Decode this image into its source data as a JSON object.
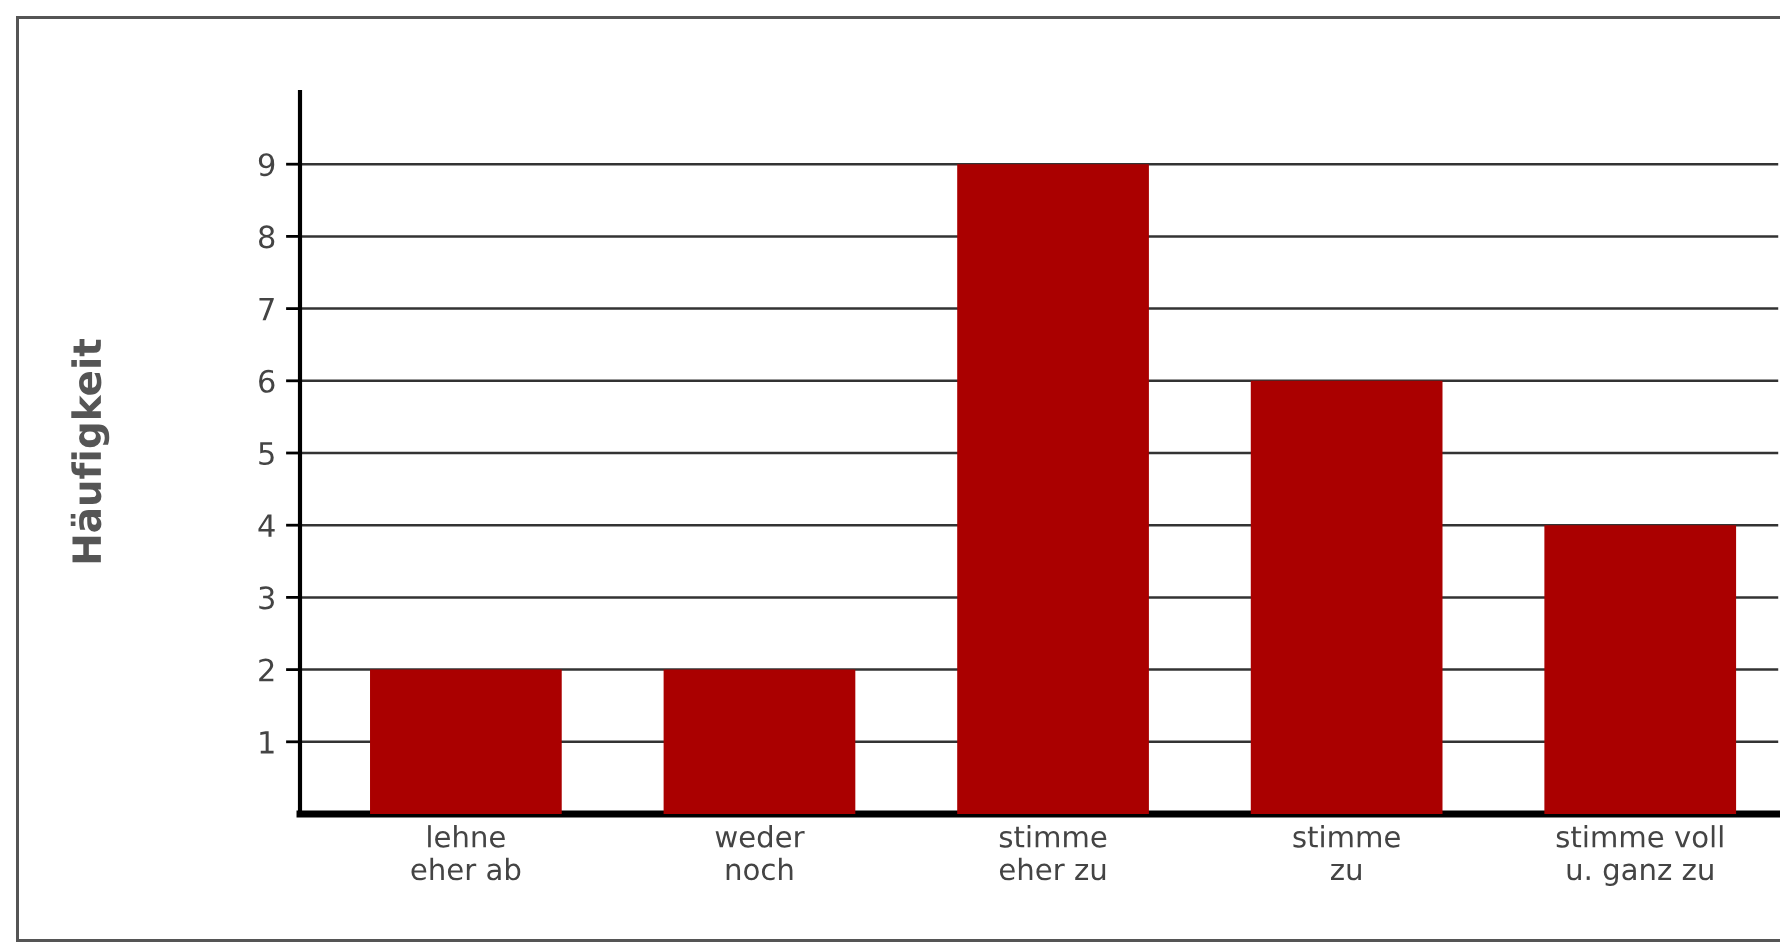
{
  "chart_data": {
    "type": "bar",
    "ylabel": "Häufigkeit",
    "categories": [
      "lehne\neher ab",
      "weder\nnoch",
      "stimme\neher zu",
      "stimme\nzu",
      "stimme voll\nu. ganz zu"
    ],
    "values": [
      2,
      2,
      9,
      6,
      4
    ],
    "color": "#aa0000",
    "ylim": [
      0,
      10
    ],
    "yticks": [
      1,
      2,
      3,
      4,
      5,
      6,
      7,
      8,
      9
    ],
    "grid": "y",
    "legend": false
  }
}
